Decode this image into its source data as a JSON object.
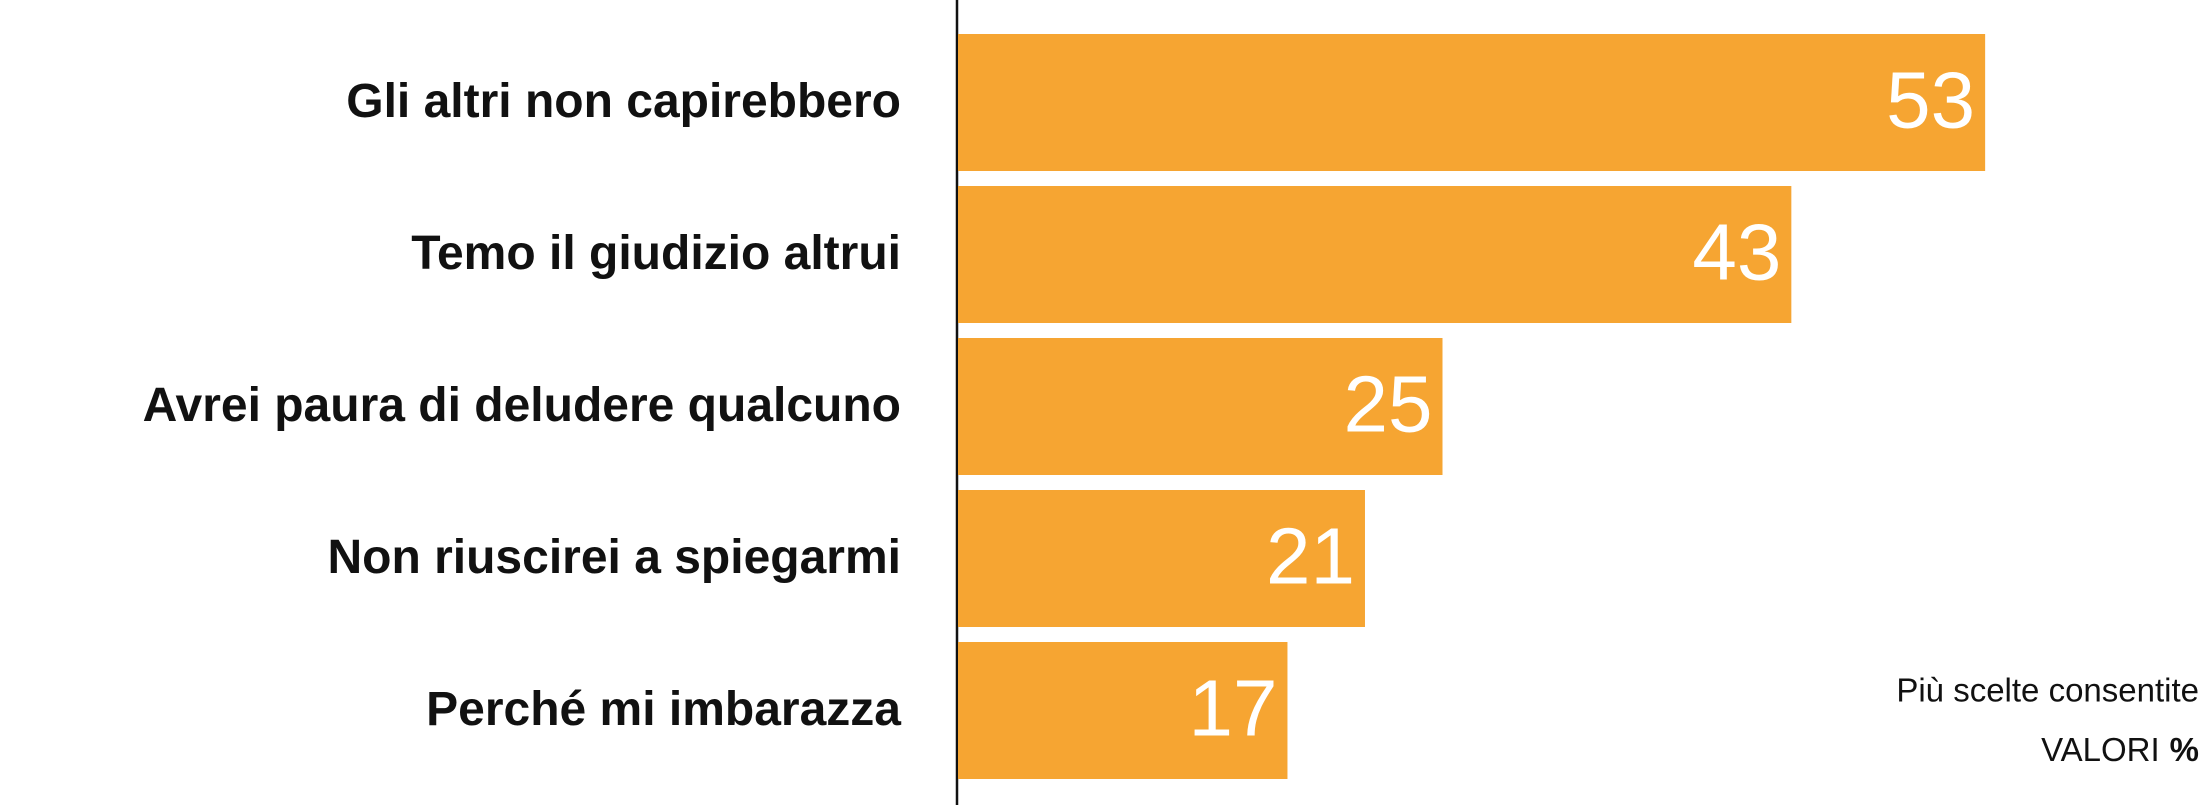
{
  "chart_data": {
    "type": "bar",
    "orientation": "horizontal",
    "categories": [
      "Gli altri non capirebbero",
      "Temo il giudizio altrui",
      "Avrei paura di deludere qualcuno",
      "Non riuscirei a spiegarmi",
      "Perché mi imbarazza"
    ],
    "values": [
      53,
      43,
      25,
      21,
      17
    ],
    "color": "#f6a532",
    "note": "Più scelte consentite",
    "unit_label": "VALORI",
    "unit_symbol": "%"
  }
}
